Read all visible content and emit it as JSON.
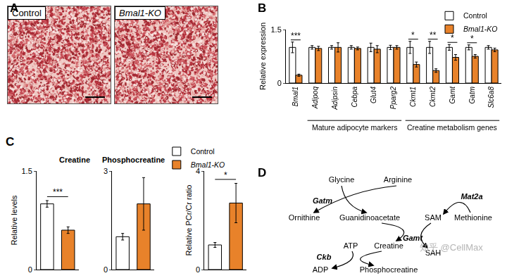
{
  "panels": {
    "A": {
      "label": "A",
      "images": [
        {
          "label": "Control"
        },
        {
          "label": "Bmal1-KO"
        }
      ]
    },
    "B": {
      "label": "B"
    },
    "C": {
      "label": "C"
    },
    "D": {
      "label": "D",
      "metabolites": [
        "Glycine",
        "Arginine",
        "Ornithine",
        "Guanidinoacetate",
        "SAM",
        "Methionine",
        "SAH",
        "ATP",
        "Creatine",
        "ADP",
        "Phosphocreatine"
      ],
      "enzymes": [
        "Gatm",
        "Gamt",
        "Mat2a",
        "Ckb"
      ]
    }
  },
  "chart_data": [
    {
      "type": "bar",
      "y_label": "Relative expression",
      "categories": [
        "Bmal1",
        "Adipoq",
        "Adipsin",
        "Cebpa",
        "Glut4",
        "Pparg2",
        "Ckmt1",
        "Ckmt2",
        "Gamt",
        "Gatm",
        "Slc6a8"
      ],
      "series": [
        {
          "name": "Control",
          "color": "#ffffff",
          "values": [
            1,
            1,
            1,
            1,
            1,
            1,
            1,
            1,
            1,
            1,
            1
          ],
          "error": [
            0.15,
            0.05,
            0.05,
            0.05,
            0.12,
            0.06,
            0.17,
            0.17,
            0.08,
            0.07,
            0.05
          ]
        },
        {
          "name": "Bmal1-KO",
          "color": "#e8822a",
          "values": [
            0.22,
            0.97,
            1.0,
            0.97,
            0.95,
            1.0,
            0.52,
            0.35,
            0.72,
            0.75,
            0.93
          ],
          "error": [
            0.03,
            0.06,
            0.13,
            0.04,
            0.1,
            0.05,
            0.07,
            0.05,
            0.08,
            0.05,
            0.05
          ]
        }
      ],
      "ylim": [
        0,
        1.5
      ],
      "yticks": [
        0,
        1.5
      ],
      "legend": "top right",
      "annotations": [
        {
          "category": "Bmal1",
          "text": "***"
        },
        {
          "category": "Ckmt1",
          "text": "*"
        },
        {
          "category": "Ckmt2",
          "text": "**"
        },
        {
          "category": "Gamt",
          "text": "*"
        },
        {
          "category": "Gatm",
          "text": "*"
        }
      ],
      "groups": [
        {
          "label": "Mature adipocyte markers",
          "categories": [
            "Adipoq",
            "Adipsin",
            "Cebpa",
            "Glut4",
            "Pparg2"
          ]
        },
        {
          "label": "Creatine metabolism genes",
          "categories": [
            "Ckmt1",
            "Ckmt2",
            "Gamt",
            "Gatm",
            "Slc6a8"
          ]
        }
      ]
    },
    {
      "type": "bar",
      "title": "Creatine",
      "y_label": "Relative levels",
      "tick_labels": "y",
      "series": [
        {
          "name": "Control",
          "color": "#ffffff",
          "values": [
            1.0
          ],
          "error": [
            0.05
          ]
        },
        {
          "name": "Bmal1-KO",
          "color": "#e8822a",
          "values": [
            0.6
          ],
          "error": [
            0.05
          ]
        }
      ],
      "ylim": [
        0,
        1.5
      ],
      "yticks": [
        0,
        1.5
      ],
      "annotations": [
        {
          "text": "***"
        }
      ]
    },
    {
      "type": "bar",
      "title": "Phosphocreatine",
      "tick_labels": "y",
      "legend": "top right",
      "series": [
        {
          "name": "Control",
          "color": "#ffffff",
          "values": [
            1.0
          ],
          "error": [
            0.1
          ]
        },
        {
          "name": "Bmal1-KO",
          "color": "#e8822a",
          "values": [
            2.0
          ],
          "error": [
            0.8
          ]
        }
      ],
      "ylim": [
        0,
        3
      ],
      "yticks": [
        0,
        3
      ]
    },
    {
      "type": "bar",
      "y_label": "Relative PCr/Cr ratio",
      "tick_labels": "y",
      "series": [
        {
          "name": "Control",
          "color": "#ffffff",
          "values": [
            1.0
          ],
          "error": [
            0.1
          ]
        },
        {
          "name": "Bmal1-KO",
          "color": "#e8822a",
          "values": [
            2.7
          ],
          "error": [
            0.8
          ]
        }
      ],
      "ylim": [
        0,
        4
      ],
      "yticks": [
        0,
        4
      ],
      "annotations": [
        {
          "text": "*"
        }
      ]
    }
  ],
  "watermark": "知乎 @CellMax"
}
